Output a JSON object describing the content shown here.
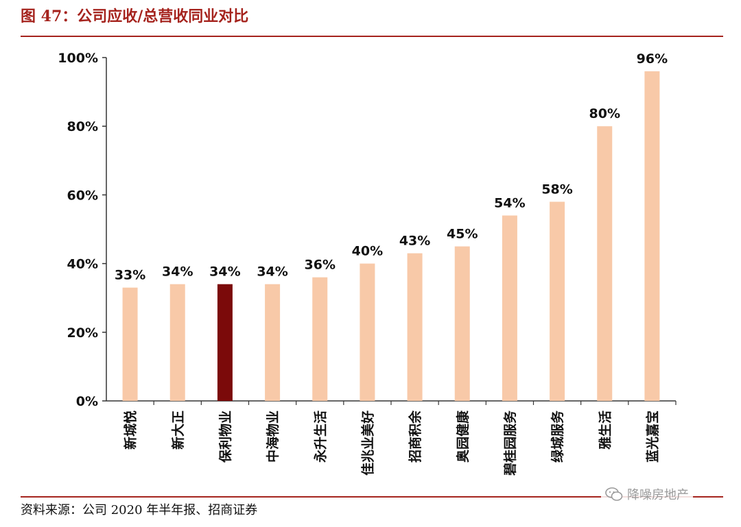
{
  "figure": {
    "title": "图 47：公司应收/总营收同业对比",
    "source": "资料来源：公司 2020 年半年报、招商证券",
    "watermark": "降噪房地产"
  },
  "colors": {
    "title": "#a5231d",
    "bar": "#f8c9a8",
    "highlight_bar": "#7b0a0a",
    "axis": "#333333"
  },
  "chart_data": {
    "type": "bar",
    "title": "",
    "xlabel": "",
    "ylabel": "",
    "categories": [
      "新城悦",
      "新大正",
      "保利物业",
      "中海物业",
      "永升生活",
      "佳兆业美好",
      "招商积余",
      "奥园健康",
      "碧桂园服务",
      "绿城服务",
      "雅生活",
      "蓝光嘉宝"
    ],
    "values": [
      33,
      34,
      34,
      34,
      36,
      40,
      43,
      45,
      54,
      58,
      80,
      96
    ],
    "value_labels": [
      "33%",
      "34%",
      "34%",
      "34%",
      "36%",
      "40%",
      "43%",
      "45%",
      "54%",
      "58%",
      "80%",
      "96%"
    ],
    "highlight_category": "保利物业",
    "ylim": [
      0,
      100
    ],
    "yticks": [
      0,
      20,
      40,
      60,
      80,
      100
    ],
    "ytick_labels": [
      "0%",
      "20%",
      "40%",
      "60%",
      "80%",
      "100%"
    ],
    "grid": false,
    "legend": "none"
  }
}
